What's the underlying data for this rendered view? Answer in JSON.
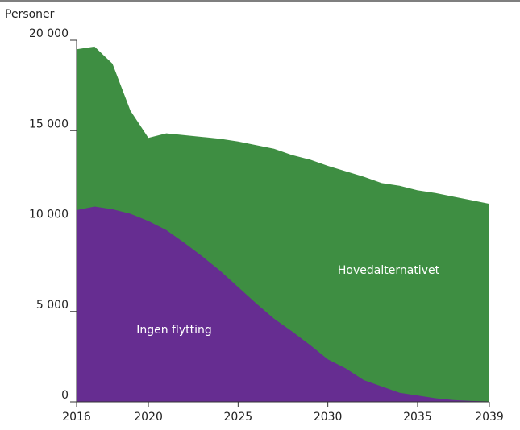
{
  "chart_data": {
    "type": "area",
    "y_label": "Personer",
    "x": [
      2016,
      2017,
      2018,
      2019,
      2020,
      2021,
      2022,
      2023,
      2024,
      2025,
      2026,
      2027,
      2028,
      2029,
      2030,
      2031,
      2032,
      2033,
      2034,
      2035,
      2036,
      2037,
      2038,
      2039
    ],
    "series": [
      {
        "name": "Hovedalternativet",
        "color": "#3e8e42",
        "values": [
          19500,
          19650,
          18700,
          16100,
          14600,
          14850,
          14750,
          14650,
          14550,
          14400,
          14200,
          14000,
          13650,
          13400,
          13050,
          12750,
          12450,
          12100,
          11950,
          11700,
          11550,
          11350,
          11150,
          10950
        ]
      },
      {
        "name": "Ingen flytting",
        "color": "#662d91",
        "values": [
          10600,
          10800,
          10650,
          10400,
          10000,
          9500,
          8800,
          8050,
          7250,
          6350,
          5450,
          4600,
          3900,
          3150,
          2350,
          1850,
          1200,
          850,
          500,
          350,
          200,
          100,
          50,
          20
        ]
      }
    ],
    "xlim": [
      2016,
      2039
    ],
    "xticks": [
      2016,
      2020,
      2025,
      2030,
      2035,
      2039
    ],
    "ylim": [
      0,
      20000
    ],
    "yticks": [
      0,
      {
        "value": 5000,
        "label": "5 000"
      },
      {
        "value": 10000,
        "label": "10 000"
      },
      {
        "value": 15000,
        "label": "15 000"
      },
      {
        "value": 20000,
        "label": "20 000"
      }
    ]
  }
}
